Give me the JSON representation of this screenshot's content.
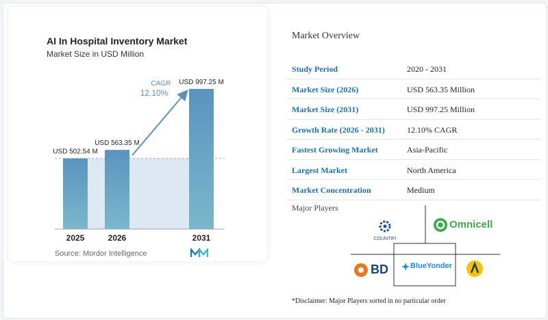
{
  "chart_data": {
    "type": "bar",
    "title": "AI In Hospital Inventory Market",
    "subtitle": "Market Size in USD Million",
    "categories": [
      "2025",
      "2026",
      "2031"
    ],
    "values": [
      502.54,
      563.35,
      997.25
    ],
    "value_labels": [
      "USD 502.54 M",
      "USD 563.35 M",
      "USD 997.25 M"
    ],
    "cagr_label": "CAGR",
    "cagr_value": "12.10%",
    "colors": {
      "bar_top": "#5b93bf",
      "bar_bottom": "#7ab8cc",
      "band": "#dde8f2",
      "arrow": "#5a93c2"
    }
  },
  "source": "Source: Mordor Intelligence",
  "overview": {
    "title": "Market Overview",
    "rows": [
      {
        "label": "Study Period",
        "value": "2020 - 2031"
      },
      {
        "label": "Market Size (2026)",
        "value": "USD 563.35 Million"
      },
      {
        "label": "Market Size (2031)",
        "value": "USD 997.25 Million"
      },
      {
        "label": "Growth Rate (2026 - 2031)",
        "value": "12.10% CAGR"
      },
      {
        "label": "Fastest Growing Market",
        "value": "Asia-Pacific"
      },
      {
        "label": "Largest Market",
        "value": "North America"
      },
      {
        "label": "Market Concentration",
        "value": "Medium"
      }
    ]
  },
  "players": {
    "title": "Major Players",
    "names": [
      "COUNTIFI",
      "Omnicell",
      "BD",
      "BlueYonder",
      "AUTOMOGRAF"
    ]
  },
  "disclaimer": "*Disclaimer: Major Players sorted in no particular order"
}
